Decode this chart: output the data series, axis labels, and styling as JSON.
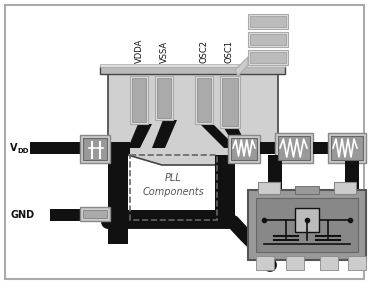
{
  "bg_color": "#ffffff",
  "dark_gray": "#444444",
  "mid_gray": "#888888",
  "light_gray": "#cccccc",
  "chip_gray": "#bbbbbb",
  "black": "#111111",
  "white": "#ffffff",
  "wire_gray": "#999999",
  "xtal_outer": "#999999",
  "xtal_inner": "#777777",
  "pad_light": "#dddddd",
  "pad_dark": "#888888",
  "resistor_body": "#aaaaaa",
  "pll_text": "PLL\nComponents",
  "label_vdd": "V",
  "label_vdd_sub": "DD",
  "label_gnd": "GND",
  "labels_top": [
    "VDDA",
    "VSSA",
    "OSC2",
    "OSC1"
  ]
}
